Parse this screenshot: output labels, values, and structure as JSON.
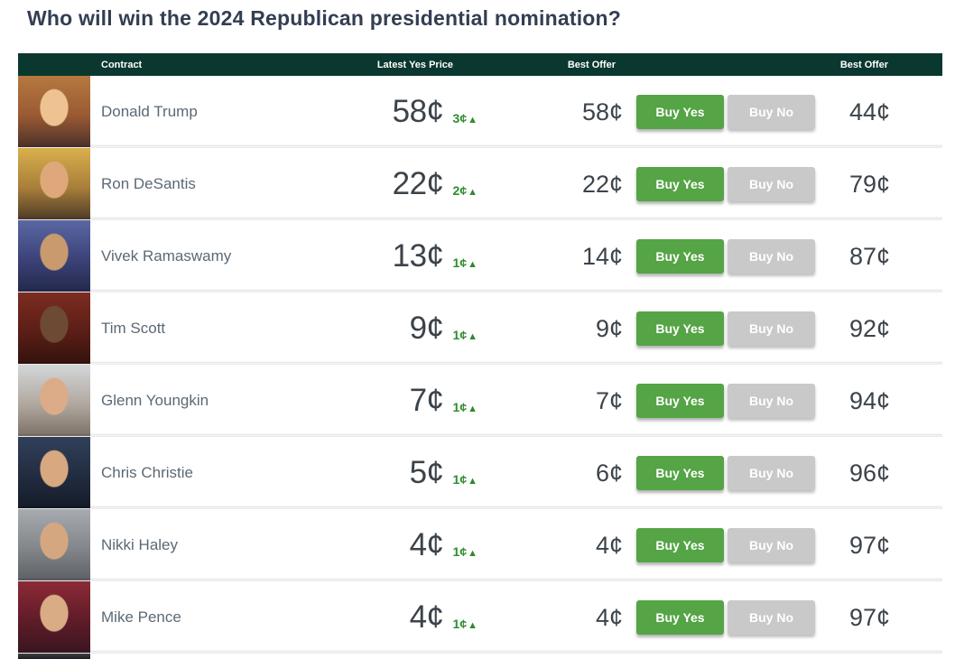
{
  "page": {
    "title": "Who will win the 2024 Republican presidential nomination?"
  },
  "table": {
    "headers": {
      "contract": "Contract",
      "latest_yes_price": "Latest Yes Price",
      "best_offer_yes": "Best Offer",
      "best_offer_no": "Best Offer"
    },
    "buy_yes_label": "Buy Yes",
    "buy_no_label": "Buy No",
    "rows": [
      {
        "name": "Donald Trump",
        "latest_yes_price": "58¢",
        "change": "3¢",
        "best_offer_yes": "58¢",
        "best_offer_no": "44¢",
        "photo": "radial-gradient(ellipse 26px 34px at 50% 44%, #eec391 58%, rgba(0,0,0,0) 62%), linear-gradient(180deg, #b5793f 0%, #9a5a33 55%, #4a3029 100%)"
      },
      {
        "name": "Ron DeSantis",
        "latest_yes_price": "22¢",
        "change": "2¢",
        "best_offer_yes": "22¢",
        "best_offer_no": "79¢",
        "photo": "radial-gradient(ellipse 26px 34px at 50% 44%, #dfa87a 58%, rgba(0,0,0,0) 62%), linear-gradient(180deg, #d9b04c 0%, #a87e3a 55%, #4c3a27 100%)"
      },
      {
        "name": "Vivek Ramaswamy",
        "latest_yes_price": "13¢",
        "change": "1¢",
        "best_offer_yes": "14¢",
        "best_offer_no": "87¢",
        "photo": "radial-gradient(ellipse 26px 34px at 50% 44%, #c99a6e 58%, rgba(0,0,0,0) 62%), linear-gradient(180deg, #5a67a3 0%, #3c4278 55%, #23284a 100%)"
      },
      {
        "name": "Tim Scott",
        "latest_yes_price": "9¢",
        "change": "1¢",
        "best_offer_yes": "9¢",
        "best_offer_no": "92¢",
        "photo": "radial-gradient(ellipse 26px 34px at 50% 44%, #6d4a33 58%, rgba(0,0,0,0) 62%), linear-gradient(180deg, #7c2c20 0%, #5a1e16 55%, #33120d 100%)"
      },
      {
        "name": "Glenn Youngkin",
        "latest_yes_price": "7¢",
        "change": "1¢",
        "best_offer_yes": "7¢",
        "best_offer_no": "94¢",
        "photo": "radial-gradient(ellipse 26px 34px at 50% 44%, #dcab88 58%, rgba(0,0,0,0) 62%), linear-gradient(180deg, #d3d6d8 0%, #b0a89f 55%, #7c7066 100%)"
      },
      {
        "name": "Chris Christie",
        "latest_yes_price": "5¢",
        "change": "1¢",
        "best_offer_yes": "6¢",
        "best_offer_no": "96¢",
        "photo": "radial-gradient(ellipse 26px 34px at 50% 44%, #d8a880 58%, rgba(0,0,0,0) 62%), linear-gradient(180deg, #31405a 0%, #222c40 55%, #141b28 100%)"
      },
      {
        "name": "Nikki Haley",
        "latest_yes_price": "4¢",
        "change": "1¢",
        "best_offer_yes": "4¢",
        "best_offer_no": "97¢",
        "photo": "radial-gradient(ellipse 26px 34px at 50% 44%, #d5a781 58%, rgba(0,0,0,0) 62%), linear-gradient(180deg, #a7abb0 0%, #82868b 55%, #5c5f63 100%)"
      },
      {
        "name": "Mike Pence",
        "latest_yes_price": "4¢",
        "change": "1¢",
        "best_offer_yes": "4¢",
        "best_offer_no": "97¢",
        "photo": "radial-gradient(ellipse 26px 34px at 50% 44%, #d9ac85 58%, rgba(0,0,0,0) 62%), linear-gradient(180deg, #8c2a36 0%, #5e1c28 55%, #3a1520 100%)"
      }
    ],
    "partial_row_photo": "linear-gradient(180deg, #3f3f46, #1d1d22)"
  },
  "icons": {
    "price_up_arrow": "▲"
  },
  "colors": {
    "header_bg": "#0b382e",
    "buy_yes_green": "#55a445",
    "buy_no_gray": "#c9c9c9",
    "price_change_up_green": "#2e8b2e",
    "title_navy": "#333e52",
    "price_text": "#3c434a"
  }
}
